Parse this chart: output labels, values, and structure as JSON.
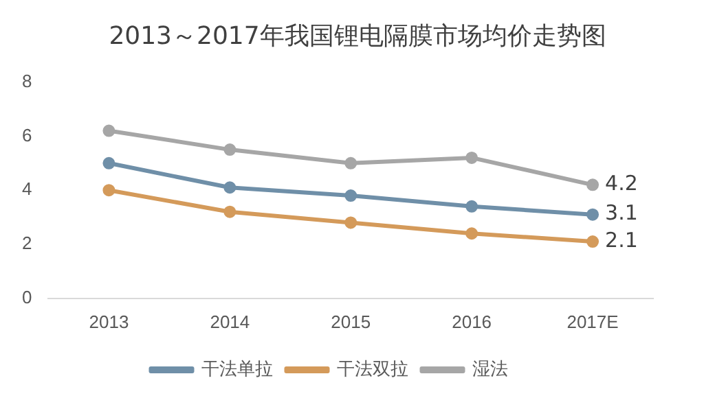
{
  "chart_data": {
    "type": "line",
    "title": "2013～2017年我国锂电隔膜市场均价走势图",
    "categories": [
      "2013",
      "2014",
      "2015",
      "2016",
      "2017E"
    ],
    "series": [
      {
        "name": "干法单拉",
        "color": "#6f8fa8",
        "values": [
          5.0,
          4.1,
          3.8,
          3.4,
          3.1
        ],
        "value_labels": [
          null,
          null,
          null,
          null,
          "3.1"
        ]
      },
      {
        "name": "干法双拉",
        "color": "#d49a5a",
        "values": [
          4.0,
          3.2,
          2.8,
          2.4,
          2.1
        ],
        "value_labels": [
          null,
          null,
          null,
          null,
          "2.1"
        ]
      },
      {
        "name": "湿法",
        "color": "#a6a6a6",
        "values": [
          6.2,
          5.5,
          5.0,
          5.2,
          4.2
        ],
        "value_labels": [
          null,
          null,
          null,
          null,
          "4.2"
        ]
      }
    ],
    "ylim": [
      0,
      8
    ],
    "yticks": [
      0,
      2,
      4,
      6,
      8
    ],
    "grid": false,
    "legend": "bottom",
    "marker": "circle",
    "line_style": "solid"
  }
}
